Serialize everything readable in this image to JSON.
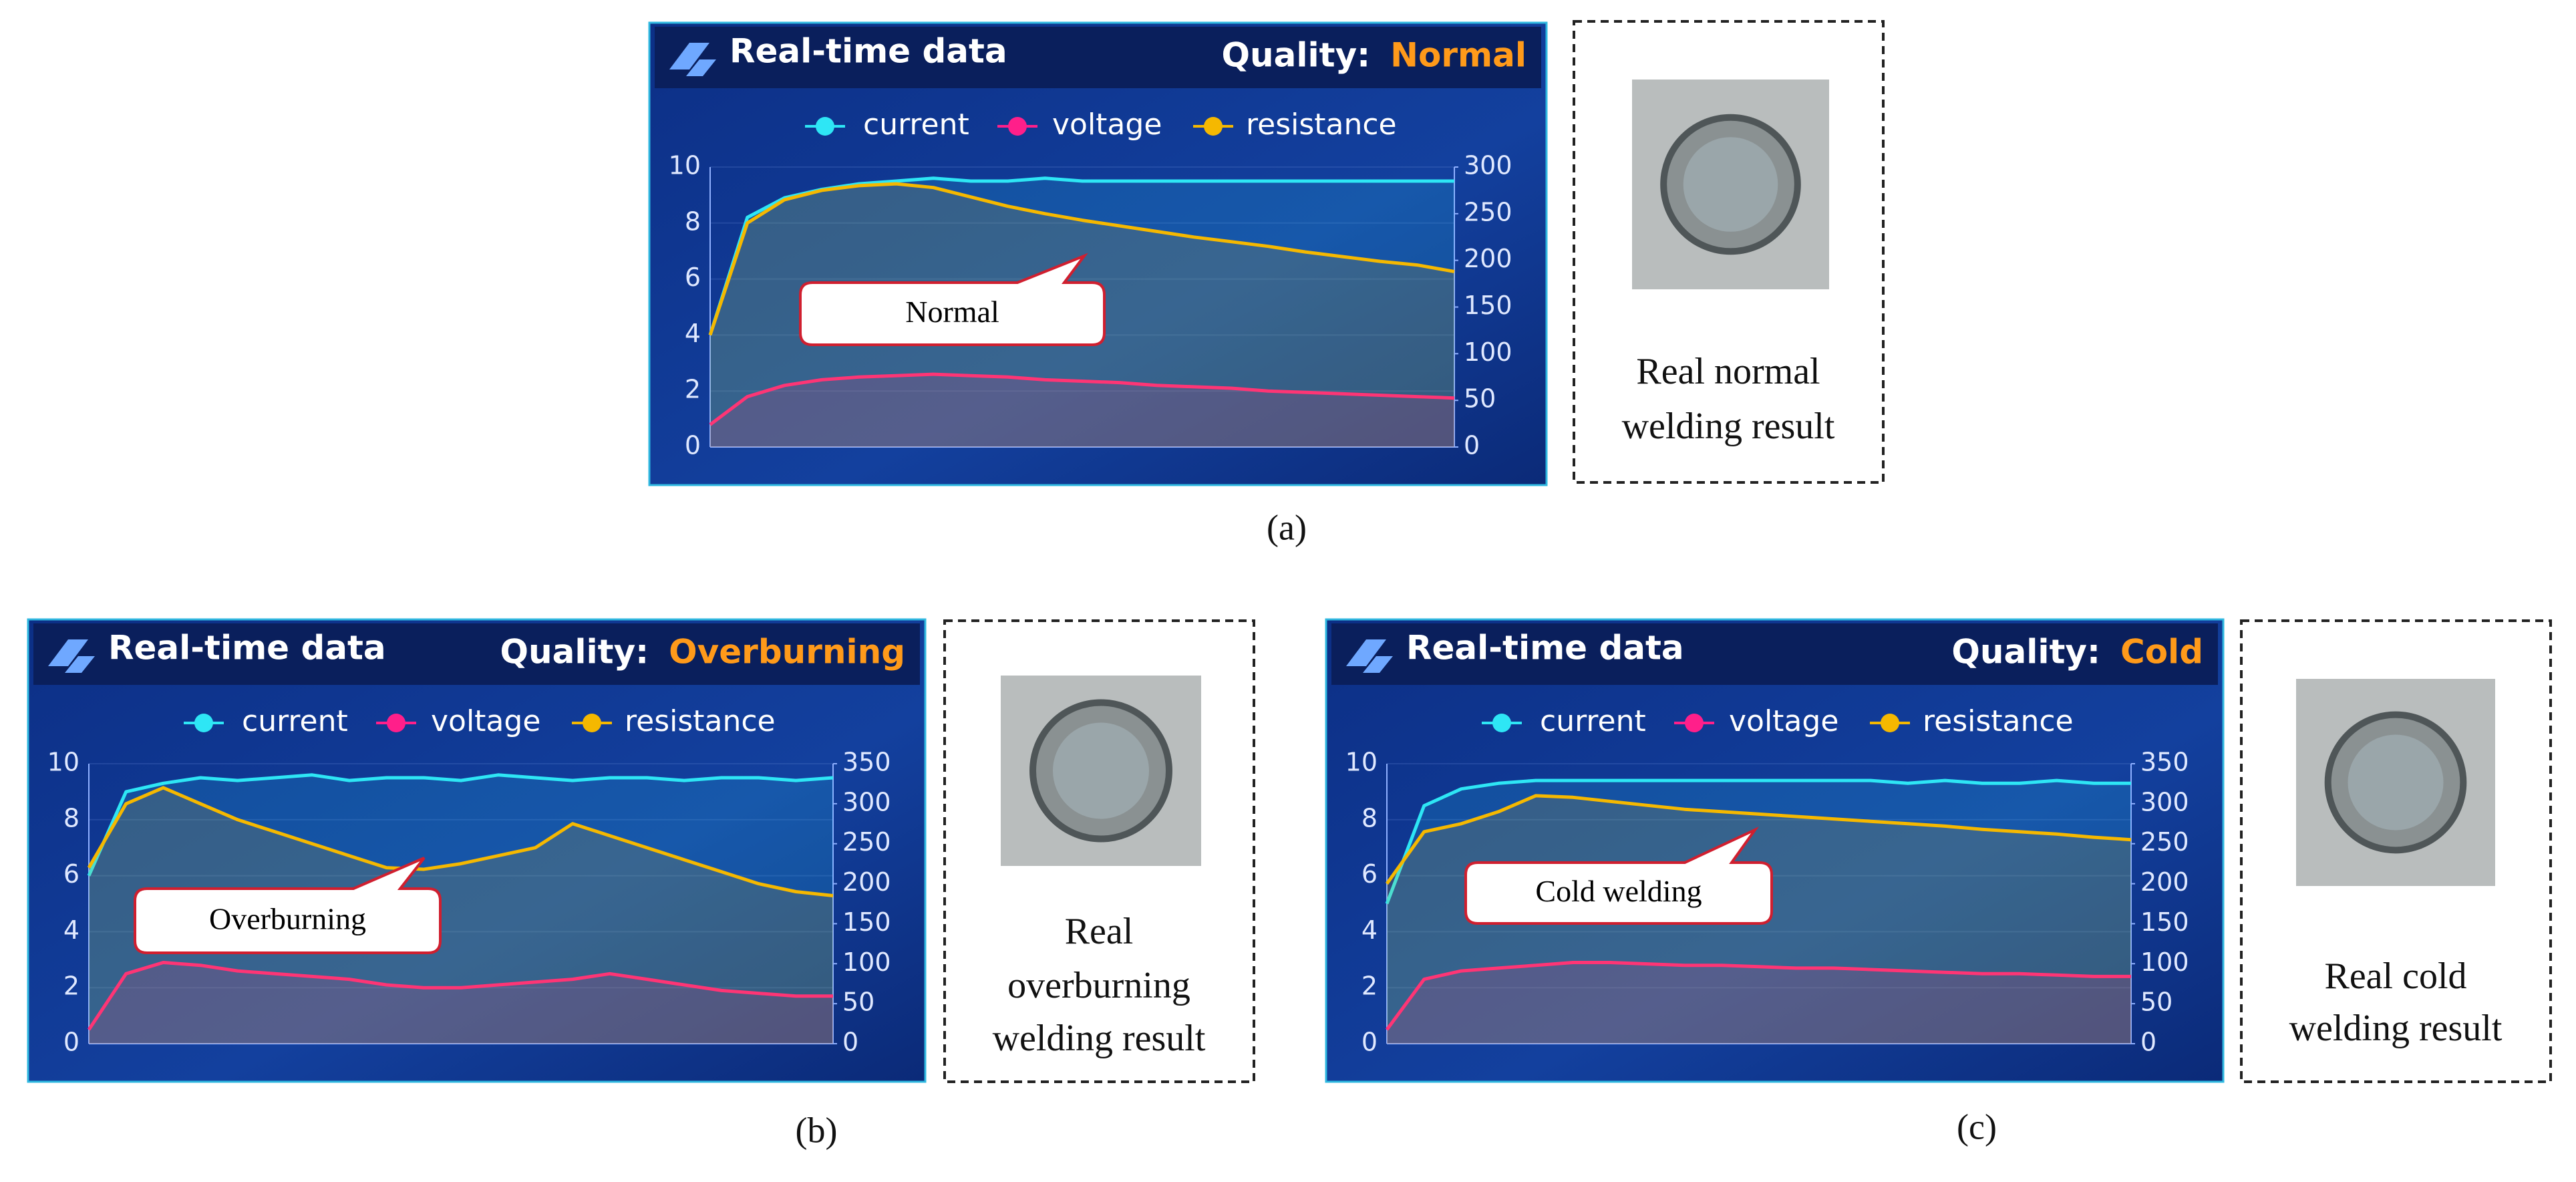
{
  "chart_data": [
    {
      "type": "line",
      "title": "Real-time data",
      "quality_label": "Quality:",
      "quality": "Normal",
      "annotation": "Normal",
      "result_lines": [
        "Real normal",
        "welding result"
      ],
      "caption": "(a)",
      "ylim": [
        0,
        10
      ],
      "yticks": [
        0,
        2,
        4,
        6,
        8,
        10
      ],
      "y2lim": [
        0,
        300
      ],
      "y2ticks": [
        0,
        50,
        100,
        150,
        200,
        250,
        300
      ],
      "grid": true,
      "series": [
        {
          "name": "current",
          "color": "#2ee6f5",
          "values": [
            4,
            8.2,
            8.9,
            9.2,
            9.4,
            9.5,
            9.6,
            9.5,
            9.5,
            9.6,
            9.5,
            9.5,
            9.5,
            9.5,
            9.5,
            9.5,
            9.5,
            9.5,
            9.5,
            9.5,
            9.5
          ]
        },
        {
          "name": "voltage",
          "color": "#ff1f8a",
          "values": [
            0.8,
            1.8,
            2.2,
            2.4,
            2.5,
            2.55,
            2.6,
            2.55,
            2.5,
            2.4,
            2.35,
            2.3,
            2.2,
            2.15,
            2.1,
            2.0,
            1.95,
            1.9,
            1.85,
            1.8,
            1.75
          ]
        },
        {
          "name": "resistance",
          "color": "#f5b800",
          "axis": "y2",
          "values": [
            120,
            240,
            265,
            275,
            280,
            282,
            278,
            268,
            258,
            250,
            243,
            237,
            231,
            225,
            220,
            215,
            209,
            204,
            199,
            195,
            188
          ]
        }
      ]
    },
    {
      "type": "line",
      "title": "Real-time data",
      "quality_label": "Quality:",
      "quality": "Overburning",
      "annotation": "Overburning",
      "result_lines": [
        "Real",
        "overburning",
        "welding result"
      ],
      "caption": "(b)",
      "ylim": [
        0,
        10
      ],
      "yticks": [
        0,
        2,
        4,
        6,
        8,
        10
      ],
      "y2lim": [
        0,
        350
      ],
      "y2ticks": [
        0,
        50,
        100,
        150,
        200,
        250,
        300,
        350
      ],
      "grid": true,
      "series": [
        {
          "name": "current",
          "color": "#2ee6f5",
          "values": [
            6,
            9,
            9.3,
            9.5,
            9.4,
            9.5,
            9.6,
            9.4,
            9.5,
            9.5,
            9.4,
            9.6,
            9.5,
            9.4,
            9.5,
            9.5,
            9.4,
            9.5,
            9.5,
            9.4,
            9.5
          ]
        },
        {
          "name": "voltage",
          "color": "#ff1f8a",
          "values": [
            0.5,
            2.5,
            2.9,
            2.8,
            2.6,
            2.5,
            2.4,
            2.3,
            2.1,
            2.0,
            2.0,
            2.1,
            2.2,
            2.3,
            2.5,
            2.3,
            2.1,
            1.9,
            1.8,
            1.7,
            1.7
          ]
        },
        {
          "name": "resistance",
          "color": "#f5b800",
          "axis": "y2",
          "values": [
            220,
            300,
            320,
            300,
            280,
            265,
            250,
            235,
            220,
            218,
            225,
            235,
            245,
            275,
            260,
            245,
            230,
            215,
            200,
            190,
            185
          ]
        }
      ]
    },
    {
      "type": "line",
      "title": "Real-time data",
      "quality_label": "Quality:",
      "quality": "Cold",
      "annotation": "Cold welding",
      "result_lines": [
        "Real cold",
        "welding result"
      ],
      "caption": "(c)",
      "ylim": [
        0,
        10
      ],
      "yticks": [
        0,
        2,
        4,
        6,
        8,
        10
      ],
      "y2lim": [
        0,
        350
      ],
      "y2ticks": [
        0,
        50,
        100,
        150,
        200,
        250,
        300,
        350
      ],
      "grid": true,
      "series": [
        {
          "name": "current",
          "color": "#2ee6f5",
          "values": [
            5,
            8.5,
            9.1,
            9.3,
            9.4,
            9.4,
            9.4,
            9.4,
            9.4,
            9.4,
            9.4,
            9.4,
            9.4,
            9.4,
            9.3,
            9.4,
            9.3,
            9.3,
            9.4,
            9.3,
            9.3
          ]
        },
        {
          "name": "voltage",
          "color": "#ff1f8a",
          "values": [
            0.5,
            2.3,
            2.6,
            2.7,
            2.8,
            2.9,
            2.9,
            2.85,
            2.8,
            2.8,
            2.75,
            2.7,
            2.7,
            2.65,
            2.6,
            2.55,
            2.5,
            2.5,
            2.45,
            2.4,
            2.4
          ]
        },
        {
          "name": "resistance",
          "color": "#f5b800",
          "axis": "y2",
          "values": [
            200,
            265,
            275,
            290,
            310,
            308,
            303,
            298,
            293,
            290,
            287,
            284,
            281,
            278,
            275,
            272,
            268,
            265,
            262,
            258,
            255
          ]
        }
      ]
    }
  ]
}
